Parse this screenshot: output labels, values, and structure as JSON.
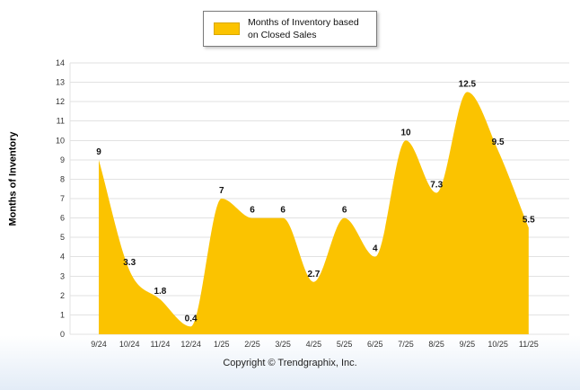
{
  "legend": {
    "label": "Months of Inventory based on Closed Sales"
  },
  "chart_data": {
    "type": "area",
    "categories": [
      "9/24",
      "10/24",
      "11/24",
      "12/24",
      "1/25",
      "2/25",
      "3/25",
      "4/25",
      "5/25",
      "6/25",
      "7/25",
      "8/25",
      "9/25",
      "10/25",
      "11/25"
    ],
    "values": [
      9,
      3.3,
      1.8,
      0.4,
      7,
      6,
      6,
      2.7,
      6,
      4,
      10,
      7.3,
      12.5,
      9.5,
      5.5
    ],
    "title": "Months of Inventory based on Closed Sales",
    "xlabel": "",
    "ylabel": "Months of Inventory",
    "ylim": [
      0,
      14
    ],
    "y_tick_step": 1,
    "grid": true,
    "legend_position": "top",
    "area_color": "#FBC300",
    "grid_color": "#e2e2e2",
    "label_color": "#111111"
  },
  "footer": {
    "copyright": "Copyright © Trendgraphix, Inc."
  }
}
